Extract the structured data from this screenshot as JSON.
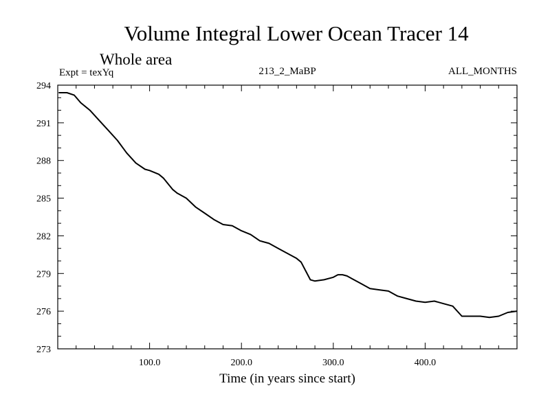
{
  "chart_data": {
    "type": "line",
    "title": "Volume Integral Lower Ocean Tracer 14",
    "subtitle": "Whole area",
    "expt_label": "Expt = texYq",
    "center_label": "213_2_MaBP",
    "right_label": "ALL_MONTHS",
    "xlabel": "Time (in years since start)",
    "ylabel": "",
    "xlim": [
      0,
      500
    ],
    "ylim": [
      273,
      294
    ],
    "x_ticks": [
      100,
      200,
      300,
      400
    ],
    "x_tick_labels": [
      "100.0",
      "200.0",
      "300.0",
      "400.0"
    ],
    "y_ticks": [
      273,
      276,
      279,
      282,
      285,
      288,
      291,
      294
    ],
    "y_tick_labels": [
      "273",
      "276",
      "279",
      "282",
      "285",
      "288",
      "291",
      "294"
    ],
    "grid": false,
    "line_color": "#000000",
    "series": [
      {
        "x": [
          1,
          10,
          18,
          25,
          35,
          45,
          55,
          65,
          75,
          85,
          95,
          100,
          110,
          115,
          125,
          130,
          140,
          150,
          160,
          170,
          180,
          190,
          200,
          210,
          220,
          230,
          240,
          250,
          260,
          265,
          270,
          275,
          280,
          290,
          300,
          305,
          310,
          315,
          320,
          330,
          340,
          350,
          360,
          370,
          380,
          390,
          400,
          410,
          420,
          430,
          440,
          450,
          460,
          470,
          480,
          490,
          500
        ],
        "y": [
          293.4,
          293.4,
          293.2,
          292.6,
          292.0,
          291.2,
          290.4,
          289.6,
          288.6,
          287.8,
          287.3,
          287.2,
          286.9,
          286.6,
          285.7,
          285.4,
          285.0,
          284.3,
          283.8,
          283.3,
          282.9,
          282.8,
          282.4,
          282.1,
          281.6,
          281.4,
          281.0,
          280.6,
          280.2,
          279.9,
          279.2,
          278.5,
          278.4,
          278.5,
          278.7,
          278.9,
          278.9,
          278.8,
          278.6,
          278.2,
          277.8,
          277.7,
          277.6,
          277.2,
          277.0,
          276.8,
          276.7,
          276.8,
          276.6,
          276.4,
          275.6,
          275.6,
          275.6,
          275.5,
          275.6,
          275.9,
          276.0
        ]
      }
    ]
  }
}
